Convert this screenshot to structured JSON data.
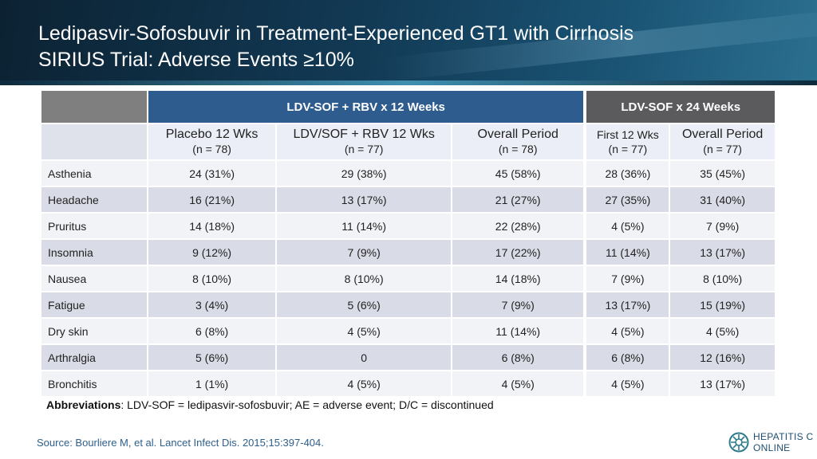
{
  "title": {
    "line1": "Ledipasvir-Sofosbuvir in Treatment-Experienced GT1 with Cirrhosis",
    "line2": "SIRIUS Trial: Adverse Events ≥10%"
  },
  "table": {
    "groups": [
      "LDV-SOF + RBV x 12 Weeks",
      "LDV-SOF x 24 Weeks"
    ],
    "columns": [
      {
        "label": "Placebo 12 Wks",
        "n": "(n = 78)"
      },
      {
        "label": "LDV/SOF + RBV 12 Wks",
        "n": "(n = 77)"
      },
      {
        "label": "Overall Period",
        "n": "(n = 78)"
      },
      {
        "label": "First 12 Wks",
        "n": "(n = 77)"
      },
      {
        "label": "Overall Period",
        "n": "(n = 77)"
      }
    ],
    "rows": [
      {
        "label": "Asthenia",
        "values": [
          "24 (31%)",
          "29 (38%)",
          "45 (58%)",
          "28 (36%)",
          "35 (45%)"
        ]
      },
      {
        "label": "Headache",
        "values": [
          "16 (21%)",
          "13 (17%)",
          "21 (27%)",
          "27 (35%)",
          "31 (40%)"
        ]
      },
      {
        "label": "Pruritus",
        "values": [
          "14 (18%)",
          "11 (14%)",
          "22 (28%)",
          "4 (5%)",
          "7 (9%)"
        ]
      },
      {
        "label": "Insomnia",
        "values": [
          "9 (12%)",
          "7 (9%)",
          "17 (22%)",
          "11 (14%)",
          "13 (17%)"
        ]
      },
      {
        "label": "Nausea",
        "values": [
          "8 (10%)",
          "8 (10%)",
          "14 (18%)",
          "7 (9%)",
          "8 (10%)"
        ]
      },
      {
        "label": "Fatigue",
        "values": [
          "3 (4%)",
          "5 (6%)",
          "7 (9%)",
          "13 (17%)",
          "15 (19%)"
        ]
      },
      {
        "label": "Dry skin",
        "values": [
          "6 (8%)",
          "4 (5%)",
          "11 (14%)",
          "4 (5%)",
          "4 (5%)"
        ]
      },
      {
        "label": "Arthralgia",
        "values": [
          "5 (6%)",
          "0",
          "6 (8%)",
          "6 (8%)",
          "12 (16%)"
        ]
      },
      {
        "label": "Bronchitis",
        "values": [
          "1 (1%)",
          "4 (5%)",
          "4 (5%)",
          "4 (5%)",
          "13 (17%)"
        ]
      }
    ]
  },
  "abbreviations": {
    "label": "Abbreviations",
    "text": ": LDV-SOF = ledipasvir-sofosbuvir; AE = adverse event; D/C = discontinued"
  },
  "source": "Source: Bourliere M, et al. Lancet Infect Dis. 2015;15:397-404.",
  "logo": {
    "line1": "HEPATITIS C",
    "line2": "ONLINE"
  },
  "colors": {
    "header_dark": "#0c2233",
    "group_blue": "#2e5c8f",
    "group_gray": "#5b5b5e",
    "source_text": "#2d5f8c"
  }
}
